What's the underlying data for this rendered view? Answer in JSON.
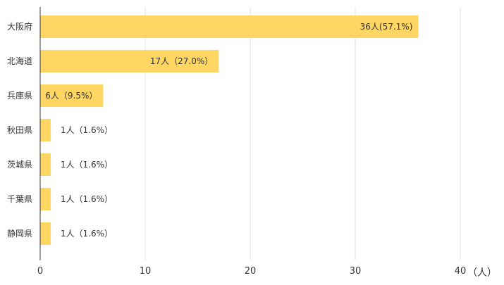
{
  "chart_data": {
    "type": "bar",
    "orientation": "horizontal",
    "categories": [
      "大阪府",
      "北海道",
      "兵庫県",
      "秋田県",
      "茨城県",
      "千葉県",
      "静岡県"
    ],
    "values": [
      36,
      17,
      6,
      1,
      1,
      1,
      1
    ],
    "value_labels": [
      "36人(57.1%)",
      "17人（27.0%）",
      "6人（9.5%）",
      "1人（1.6%）",
      "1人（1.6%）",
      "1人（1.6%）",
      "1人（1.6%）"
    ],
    "x_ticks": [
      0,
      10,
      20,
      30,
      40
    ],
    "xlim": [
      0,
      40
    ],
    "x_unit": "（人）",
    "grid": true,
    "legend": "none",
    "colors": {
      "bar": "#fdd663",
      "grid": "#e0e0e0",
      "axis": "#333333",
      "text": "#333333"
    }
  }
}
